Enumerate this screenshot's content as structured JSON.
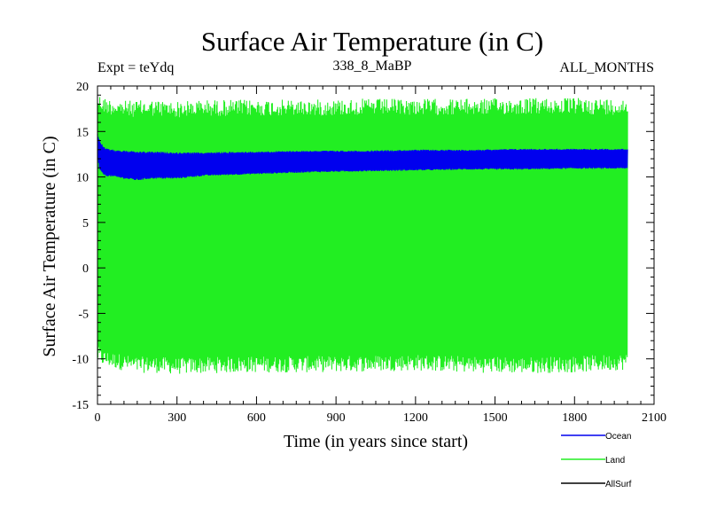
{
  "chart_data": {
    "type": "line",
    "title": "Surface Air Temperature (in C)",
    "subtitle_left": "Expt = teYdq",
    "subtitle_center": "338_8_MaBP",
    "subtitle_right": "ALL_MONTHS",
    "xlabel": "Time (in years since start)",
    "ylabel": "Surface Air Temperature (in C)",
    "xlim": [
      0,
      2100
    ],
    "ylim": [
      -15,
      20
    ],
    "xticks": [
      0,
      300,
      600,
      900,
      1200,
      1500,
      1800,
      2100
    ],
    "yticks": [
      -15,
      -10,
      -5,
      0,
      5,
      10,
      15,
      20
    ],
    "series": [
      {
        "name": "Land",
        "color": "#22ee22",
        "x": [
          0,
          20,
          50,
          100,
          150,
          200,
          300,
          400,
          600,
          800,
          1000,
          1200,
          1400,
          1600,
          1800,
          2000
        ],
        "upper": [
          19.3,
          18.8,
          18.6,
          18.4,
          18.4,
          18.5,
          18.3,
          18.5,
          18.5,
          18.5,
          18.6,
          18.6,
          18.6,
          18.7,
          18.7,
          18.6
        ],
        "lower": [
          -10.4,
          -10.8,
          -11.0,
          -11.3,
          -11.6,
          -11.5,
          -11.7,
          -11.6,
          -11.5,
          -11.5,
          -11.4,
          -11.3,
          -11.5,
          -11.6,
          -11.5,
          -11.2
        ]
      },
      {
        "name": "Ocean",
        "color": "#0000ee",
        "x": [
          0,
          10,
          30,
          60,
          100,
          150,
          200,
          300,
          400,
          600,
          800,
          1000,
          1200,
          1400,
          1600,
          1800,
          2000
        ],
        "upper": [
          14.8,
          13.8,
          13.2,
          13.0,
          12.9,
          12.8,
          12.8,
          12.7,
          12.7,
          12.8,
          12.9,
          12.9,
          13.0,
          13.0,
          13.1,
          13.1,
          13.1
        ],
        "lower": [
          12.0,
          10.6,
          10.1,
          10.0,
          9.8,
          9.6,
          9.8,
          9.8,
          10.1,
          10.3,
          10.5,
          10.6,
          10.7,
          10.8,
          10.8,
          10.9,
          10.9
        ]
      },
      {
        "name": "AllSurf",
        "color": "#000000",
        "x": [],
        "upper": [],
        "lower": []
      }
    ],
    "legend": [
      "Ocean",
      "Land",
      "AllSurf"
    ],
    "legend_position": "bottom-right"
  }
}
